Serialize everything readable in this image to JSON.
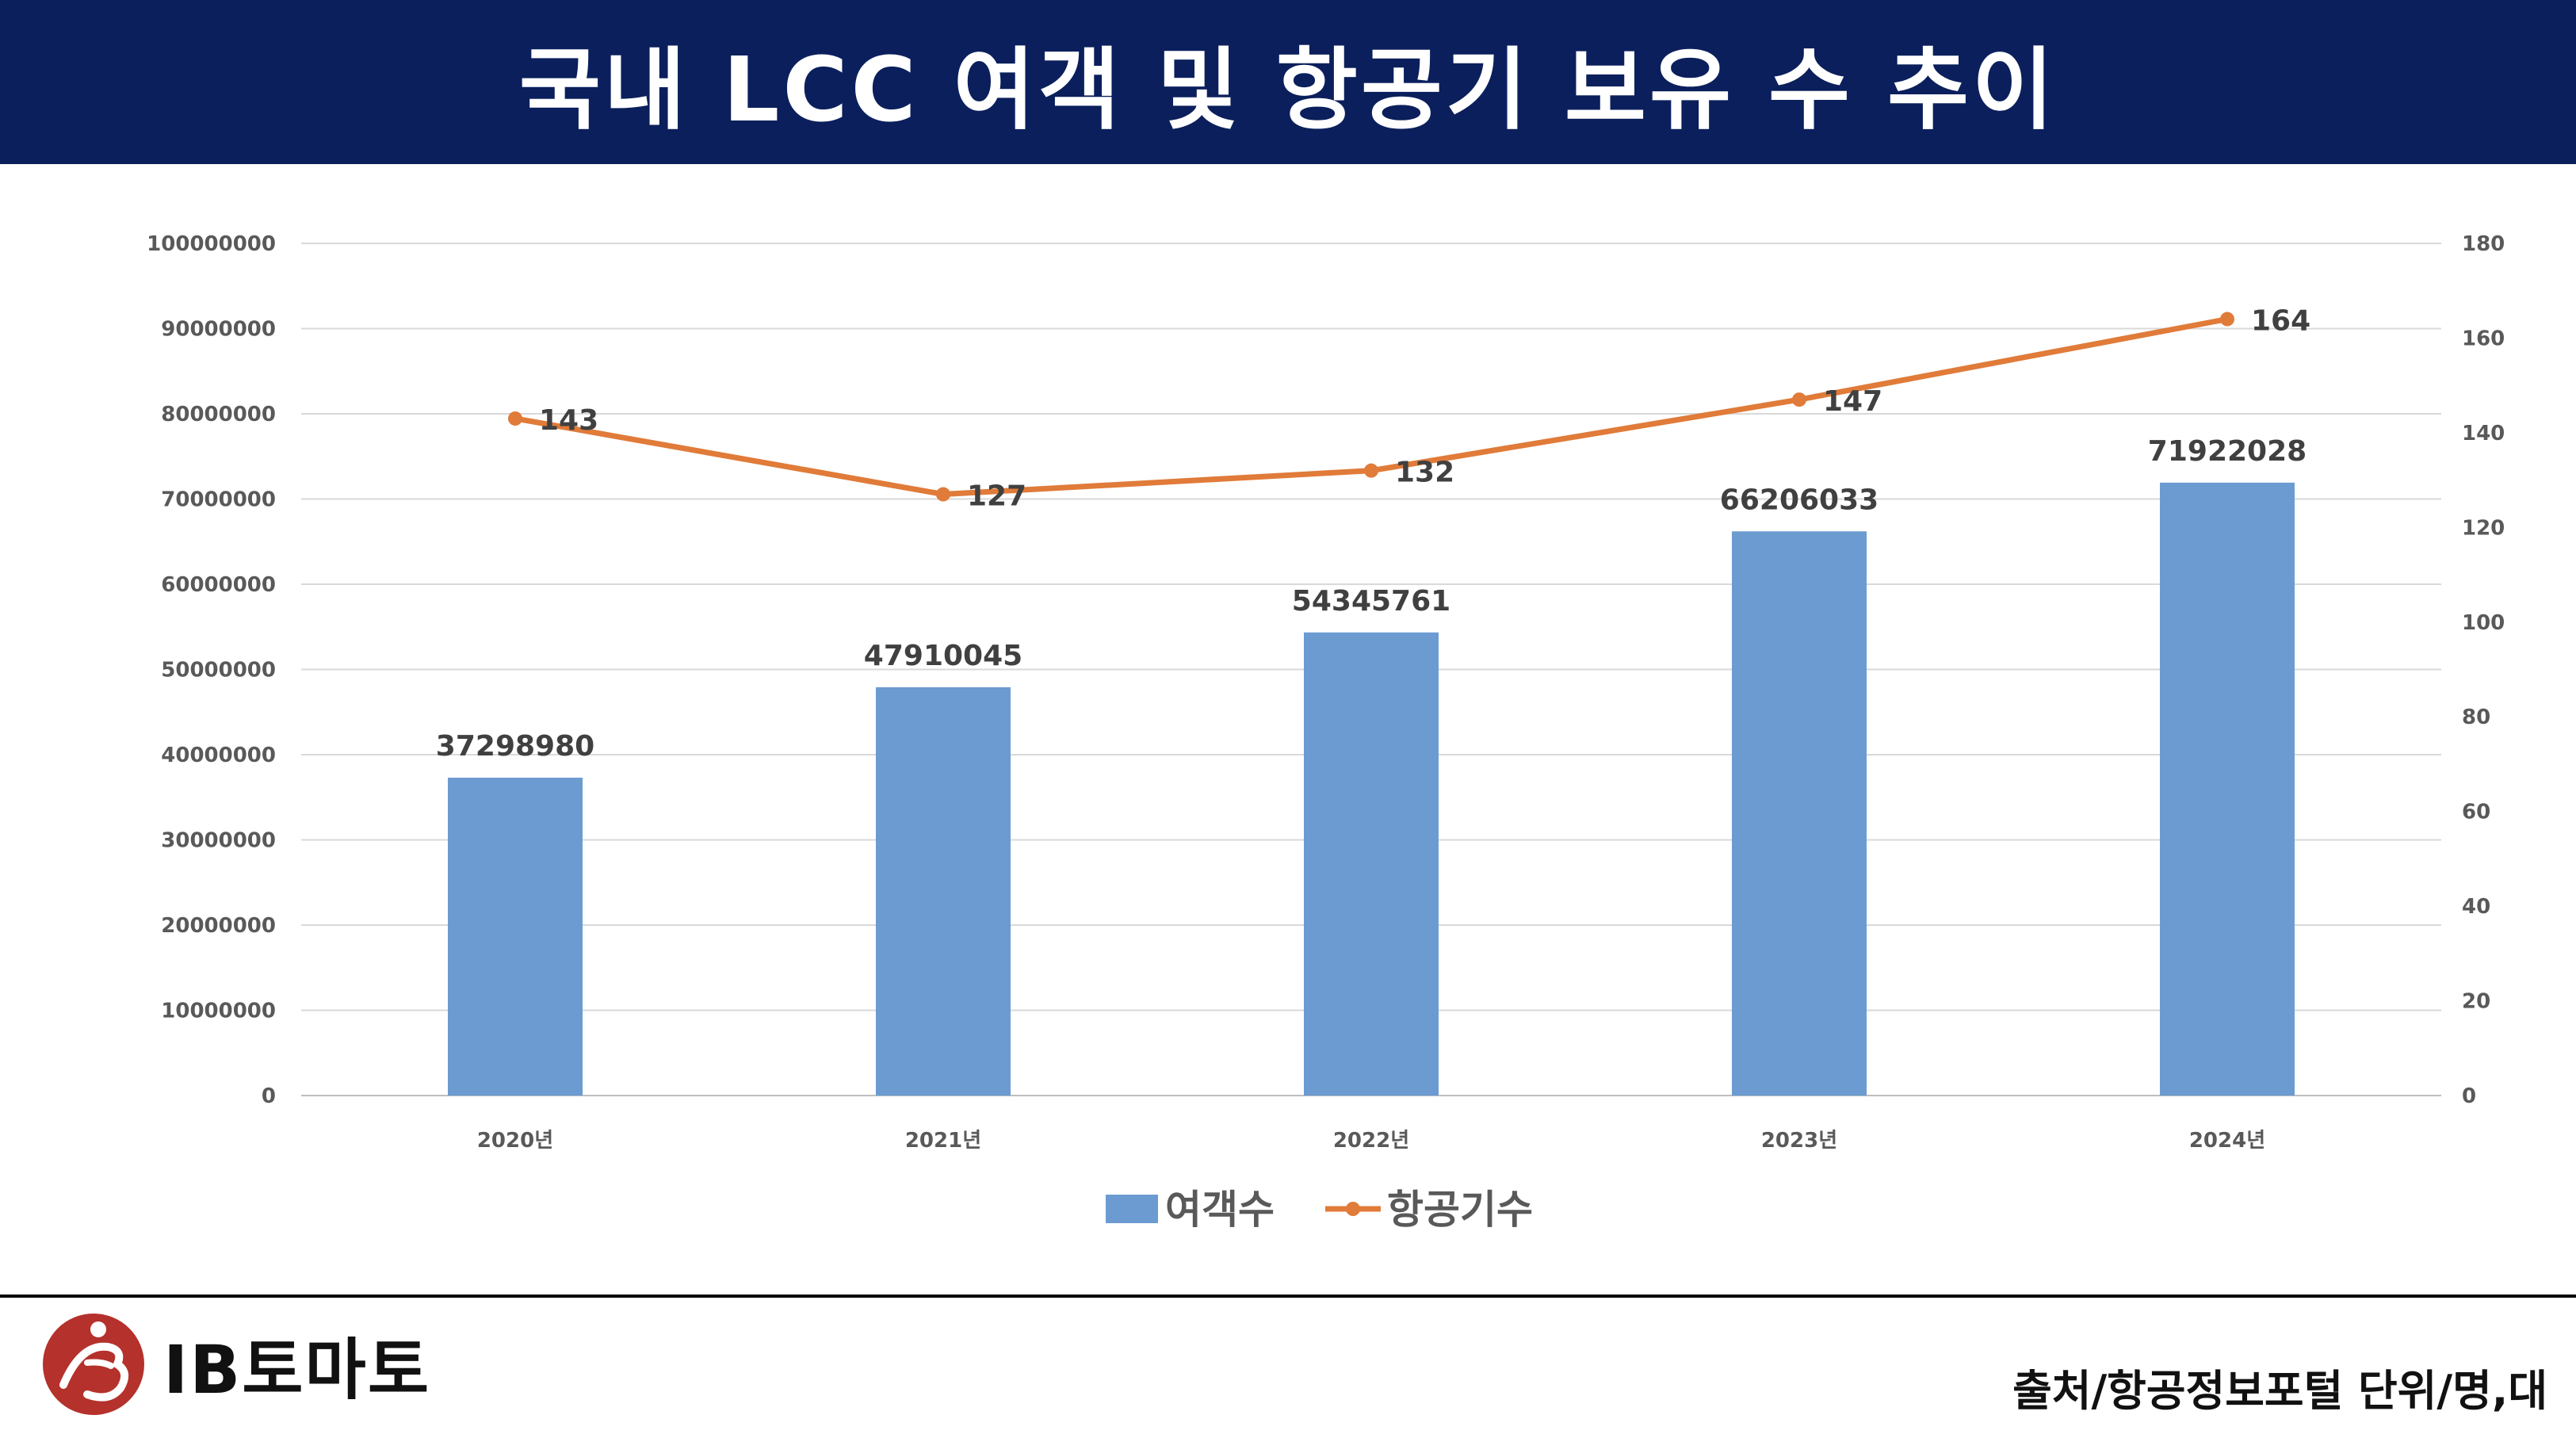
{
  "header": {
    "title": "국내 LCC 여객 및 항공기 보유 수 추이"
  },
  "chart_data": {
    "type": "bar",
    "categories": [
      "2020년",
      "2021년",
      "2022년",
      "2023년",
      "2024년"
    ],
    "series": [
      {
        "name": "여객수",
        "type": "bar",
        "axis": "left",
        "color": "#6b9bd1",
        "values": [
          37298980,
          47910045,
          54345761,
          66206033,
          71922028
        ]
      },
      {
        "name": "항공기수",
        "type": "line",
        "axis": "right",
        "color": "#e07b39",
        "values": [
          143,
          127,
          132,
          147,
          164
        ]
      }
    ],
    "y_left": {
      "min": 0,
      "max": 100000000,
      "ticks": [
        "0",
        "10000000",
        "20000000",
        "30000000",
        "40000000",
        "50000000",
        "60000000",
        "70000000",
        "80000000",
        "90000000",
        "100000000"
      ]
    },
    "y_right": {
      "min": 0,
      "max": 180,
      "ticks": [
        "0",
        "20",
        "40",
        "60",
        "80",
        "100",
        "120",
        "140",
        "160",
        "180"
      ]
    },
    "grid": true,
    "legend": "bottom-center",
    "title": "",
    "xlabel": "",
    "ylabel": ""
  },
  "footer": {
    "logo_text": "IB토마토",
    "source": "출처/항공정보포털 단위/명,대"
  }
}
